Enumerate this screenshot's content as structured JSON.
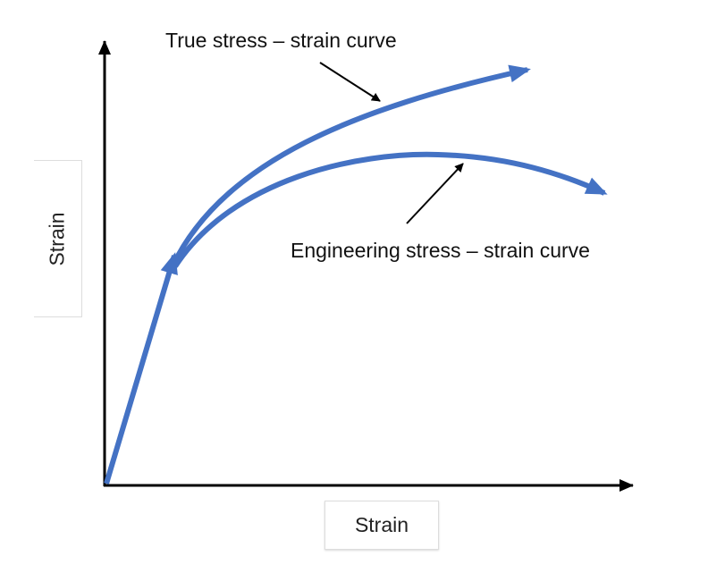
{
  "labels": {
    "true_curve": "True stress – strain curve",
    "engineering_curve": "Engineering stress – strain curve",
    "x_axis": "Strain",
    "y_axis": "Strain"
  },
  "colors": {
    "curve": "#4472c4",
    "axis": "#000000"
  }
}
